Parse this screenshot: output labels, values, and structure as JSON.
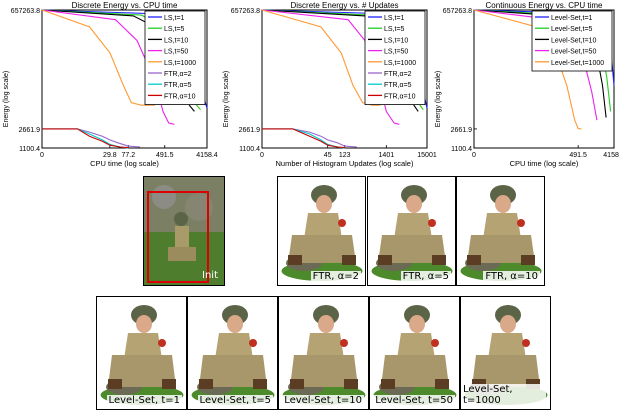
{
  "chart_data": [
    {
      "type": "line",
      "title": "Discrete Energy vs. CPU time",
      "xlabel": "CPU time (log scale)",
      "ylabel": "Energy (log scale)",
      "xscale": "log",
      "yscale": "log",
      "xticks": [
        "0",
        "29.8",
        "77.2",
        "491.5",
        "4158.4"
      ],
      "yticks": [
        "657263.8",
        "2661.9",
        "1100.4"
      ],
      "grid": false,
      "legend_position": "top-right",
      "series": [
        {
          "name": "LS,t=1",
          "color": "#1f1fff",
          "x": [
            0,
            200,
            600,
            1200,
            2000,
            3000,
            4158.4
          ],
          "y": [
            657263.8,
            560000,
            410000,
            250000,
            80000,
            18000,
            7000
          ]
        },
        {
          "name": "LS,t=5",
          "color": "#22cc22",
          "x": [
            0,
            150,
            400,
            900,
            1500,
            2200,
            3000
          ],
          "y": [
            657263.8,
            520000,
            330000,
            150000,
            30000,
            9000,
            6500
          ]
        },
        {
          "name": "LS,t=10",
          "color": "#000000",
          "x": [
            0,
            100,
            300,
            700,
            1200,
            1700,
            2200
          ],
          "y": [
            657263.8,
            500000,
            300000,
            120000,
            25000,
            8000,
            6000
          ]
        },
        {
          "name": "LS,t=50",
          "color": "#ee22ee",
          "x": [
            0,
            40,
            120,
            300,
            450,
            600,
            800
          ],
          "y": [
            657263.8,
            420000,
            160000,
            25000,
            6000,
            3500,
            3300
          ]
        },
        {
          "name": "LS,t=1000",
          "color": "#ff9933",
          "x": [
            0,
            10,
            30,
            60,
            90,
            150,
            300
          ],
          "y": [
            657263.8,
            300000,
            90000,
            20000,
            9000,
            8000,
            8000
          ]
        },
        {
          "name": "FTR,α=2",
          "color": "#9966cc",
          "x": [
            0,
            5,
            10,
            20,
            29.8,
            45,
            77.2,
            140
          ],
          "y": [
            2661.9,
            2661.9,
            2300,
            1900,
            1600,
            1400,
            1200,
            1150
          ]
        },
        {
          "name": "FTR,α=5",
          "color": "#00cccc",
          "x": [
            0,
            5,
            10,
            20,
            29.8,
            50,
            77.2
          ],
          "y": [
            2661.9,
            2661.9,
            2100,
            1600,
            1300,
            1150,
            1100.4
          ]
        },
        {
          "name": "FTR,α=10",
          "color": "#cc0000",
          "x": [
            0,
            5,
            10,
            20,
            29.8,
            50,
            77.2
          ],
          "y": [
            2661.9,
            2661.9,
            1900,
            1500,
            1250,
            1150,
            1120
          ]
        }
      ]
    },
    {
      "type": "line",
      "title": "Discrete Energy vs. # Updates",
      "xlabel": "Number of Histogram Updates (log scale)",
      "ylabel": "Energy (log scale)",
      "xscale": "log",
      "yscale": "log",
      "xticks": [
        "0",
        "45",
        "123",
        "1401",
        "15001"
      ],
      "yticks": [
        "657263.8",
        "2661.9",
        "1100.4"
      ],
      "grid": false,
      "legend_position": "top-right",
      "series": [
        {
          "name": "LS,t=1",
          "color": "#1f1fff",
          "x": [
            0,
            800,
            2500,
            5000,
            9000,
            12000,
            15001
          ],
          "y": [
            657263.8,
            560000,
            400000,
            230000,
            70000,
            15000,
            7000
          ]
        },
        {
          "name": "LS,t=5",
          "color": "#22cc22",
          "x": [
            0,
            500,
            1400,
            3000,
            6000,
            9000,
            12000
          ],
          "y": [
            657263.8,
            520000,
            330000,
            150000,
            30000,
            9000,
            6500
          ]
        },
        {
          "name": "LS,t=10",
          "color": "#000000",
          "x": [
            0,
            400,
            1000,
            2500,
            4500,
            7000,
            9000
          ],
          "y": [
            657263.8,
            500000,
            300000,
            120000,
            25000,
            8000,
            6000
          ]
        },
        {
          "name": "LS,t=50",
          "color": "#ee22ee",
          "x": [
            0,
            150,
            400,
            900,
            1401,
            2200,
            3000
          ],
          "y": [
            657263.8,
            420000,
            160000,
            25000,
            6000,
            3500,
            3300
          ]
        },
        {
          "name": "LS,t=1000",
          "color": "#ff9933",
          "x": [
            0,
            30,
            100,
            200,
            350,
            600,
            1000
          ],
          "y": [
            657263.8,
            300000,
            90000,
            20000,
            9000,
            8000,
            8000
          ]
        },
        {
          "name": "FTR,α=2",
          "color": "#9966cc",
          "x": [
            0,
            5,
            15,
            30,
            45,
            80,
            123,
            250
          ],
          "y": [
            2661.9,
            2661.9,
            2300,
            1900,
            1600,
            1400,
            1200,
            1150
          ]
        },
        {
          "name": "FTR,α=5",
          "color": "#00cccc",
          "x": [
            0,
            5,
            15,
            30,
            45,
            80,
            123
          ],
          "y": [
            2661.9,
            2661.9,
            2100,
            1600,
            1300,
            1150,
            1100.4
          ]
        },
        {
          "name": "FTR,α=10",
          "color": "#cc0000",
          "x": [
            0,
            5,
            15,
            30,
            45,
            80,
            123
          ],
          "y": [
            2661.9,
            2661.9,
            1900,
            1500,
            1250,
            1150,
            1120
          ]
        }
      ]
    },
    {
      "type": "line",
      "title": "Continuous Energy vs. CPU time",
      "xlabel": "CPU time (log scale)",
      "ylabel": "Energy (log scale)",
      "xscale": "log",
      "yscale": "log",
      "xticks": [
        "0",
        "491.5",
        "4158.4"
      ],
      "yticks": [
        "657263.8",
        "2661.9",
        "1100.4"
      ],
      "grid": false,
      "legend_position": "top-right",
      "series": [
        {
          "name": "Level-Set,t=1",
          "color": "#1f1fff",
          "x": [
            0,
            400,
            1200,
            2500,
            3500,
            4158.4
          ],
          "y": [
            657263.8,
            570000,
            430000,
            250000,
            90000,
            20000
          ]
        },
        {
          "name": "Level-Set,t=5",
          "color": "#22cc22",
          "x": [
            0,
            300,
            900,
            1800,
            2700,
            3400
          ],
          "y": [
            657263.8,
            520000,
            330000,
            150000,
            30000,
            6000
          ]
        },
        {
          "name": "Level-Set,t=10",
          "color": "#000000",
          "x": [
            0,
            250,
            700,
            1400,
            2100,
            2600
          ],
          "y": [
            657263.8,
            490000,
            290000,
            110000,
            20000,
            4500
          ]
        },
        {
          "name": "Level-Set,t=50",
          "color": "#ee22ee",
          "x": [
            0,
            120,
            350,
            700,
            1100,
            1500
          ],
          "y": [
            657263.8,
            420000,
            200000,
            60000,
            15000,
            4000
          ]
        },
        {
          "name": "Level-Set,t=1000",
          "color": "#ff9933",
          "x": [
            0,
            40,
            120,
            250,
            400,
            491.5,
            600
          ],
          "y": [
            657263.8,
            300000,
            100000,
            20000,
            4000,
            2700,
            2661.9
          ]
        }
      ]
    }
  ],
  "images": {
    "init_caption": "Init",
    "ftr_captions": [
      "FTR, α=2",
      "FTR, α=5",
      "FTR, α=10"
    ],
    "ls_captions": [
      "Level-Set, t=1",
      "Level-Set, t=5",
      "Level-Set, t=10",
      "Level-Set, t=50",
      "Level-Set, t=1000"
    ]
  }
}
